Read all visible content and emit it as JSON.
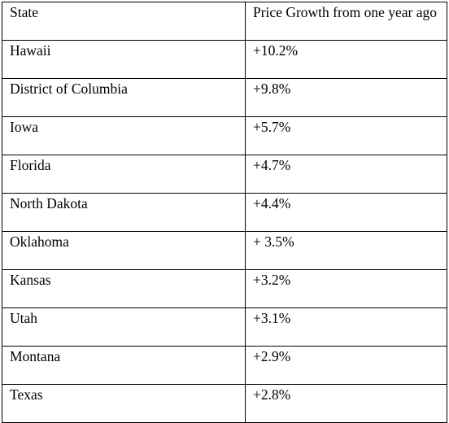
{
  "table": {
    "headers": [
      "State",
      "Price Growth from one year ago"
    ],
    "rows": [
      [
        "Hawaii",
        "+10.2%"
      ],
      [
        "District of Columbia",
        "+9.8%"
      ],
      [
        "Iowa",
        "+5.7%"
      ],
      [
        "Florida",
        "+4.7%"
      ],
      [
        "North Dakota",
        "+4.4%"
      ],
      [
        "Oklahoma",
        "+ 3.5%"
      ],
      [
        "Kansas",
        "+3.2%"
      ],
      [
        "Utah",
        "+3.1%"
      ],
      [
        "Montana",
        "+2.9%"
      ],
      [
        "Texas",
        "+2.8%"
      ]
    ]
  }
}
